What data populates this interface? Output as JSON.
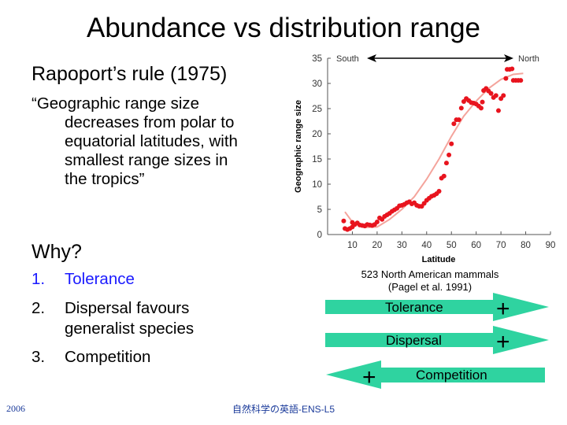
{
  "slide": {
    "title": "Abundance vs distribution range",
    "subtitle": "Rapoport’s rule (1975)",
    "quote_first": "“Geographic range size",
    "quote_rest": [
      "decreases from polar to",
      "equatorial latitudes, with",
      "smallest range sizes in",
      "the tropics”"
    ],
    "why": "Why?",
    "reasons": [
      {
        "num": "1.",
        "lines": [
          "Tolerance"
        ],
        "color": "#1a1aff"
      },
      {
        "num": "2.",
        "lines": [
          "Dispersal favours",
          "generalist species"
        ],
        "color": "#000000"
      },
      {
        "num": "3.",
        "lines": [
          "Competition"
        ],
        "color": "#000000"
      }
    ],
    "caption_line1": "523 North American mammals",
    "caption_line2": "(Pagel et al. 1991)",
    "arrows": [
      {
        "label": "Tolerance",
        "sign": "+",
        "direction": "right"
      },
      {
        "label": "Dispersal",
        "sign": "+",
        "direction": "right"
      },
      {
        "label": "Competition",
        "sign": "+",
        "direction": "left"
      }
    ],
    "arrow_color": "#2fd3a0",
    "footer_left": "2006",
    "footer_center": "自然科学の英語-ENS-L5"
  },
  "chart_data": {
    "type": "scatter",
    "xlabel": "Latitude",
    "ylabel": "Geographic range size",
    "xlim": [
      0,
      90
    ],
    "ylim": [
      0,
      35
    ],
    "xticks": [
      10,
      20,
      30,
      40,
      50,
      60,
      70,
      80,
      90
    ],
    "yticks": [
      0,
      5,
      10,
      15,
      20,
      25,
      30,
      35
    ],
    "grid": false,
    "annotation_left": "South",
    "annotation_right": "North",
    "point_color": "#e8141e",
    "curve_color": "#f4a49c",
    "points": [
      [
        6.5,
        2.7
      ],
      [
        7,
        1.2
      ],
      [
        8,
        1.0
      ],
      [
        9,
        1.2
      ],
      [
        10,
        1.5
      ],
      [
        10,
        2.4
      ],
      [
        11,
        2.0
      ],
      [
        12,
        2.3
      ],
      [
        13,
        1.9
      ],
      [
        14,
        1.8
      ],
      [
        15,
        1.7
      ],
      [
        16,
        2.0
      ],
      [
        17,
        1.9
      ],
      [
        18,
        1.8
      ],
      [
        19,
        2.0
      ],
      [
        20,
        2.5
      ],
      [
        21,
        3.3
      ],
      [
        22,
        3.0
      ],
      [
        23,
        3.6
      ],
      [
        24,
        3.9
      ],
      [
        25,
        4.2
      ],
      [
        26,
        4.6
      ],
      [
        27,
        4.9
      ],
      [
        28,
        5.2
      ],
      [
        29,
        5.7
      ],
      [
        30,
        5.8
      ],
      [
        31,
        6.0
      ],
      [
        32,
        6.3
      ],
      [
        33,
        6.5
      ],
      [
        34,
        6.1
      ],
      [
        35,
        6.3
      ],
      [
        36,
        5.8
      ],
      [
        37,
        5.6
      ],
      [
        38,
        5.6
      ],
      [
        39,
        6.2
      ],
      [
        40,
        6.8
      ],
      [
        41,
        7.2
      ],
      [
        42,
        7.6
      ],
      [
        43,
        7.8
      ],
      [
        44,
        8.1
      ],
      [
        45,
        8.6
      ],
      [
        46,
        11.2
      ],
      [
        47,
        11.6
      ],
      [
        48,
        14.2
      ],
      [
        49,
        15.8
      ],
      [
        50,
        18.0
      ],
      [
        51,
        22.0
      ],
      [
        52,
        22.8
      ],
      [
        53,
        22.8
      ],
      [
        54,
        25.1
      ],
      [
        55,
        26.4
      ],
      [
        56,
        27.0
      ],
      [
        57,
        26.6
      ],
      [
        58,
        26.2
      ],
      [
        59,
        26.1
      ],
      [
        60,
        25.9
      ],
      [
        61,
        25.5
      ],
      [
        62,
        25.1
      ],
      [
        62.5,
        26.3
      ],
      [
        63,
        28.6
      ],
      [
        64,
        29.0
      ],
      [
        65,
        28.5
      ],
      [
        66,
        28.0
      ],
      [
        67,
        27.2
      ],
      [
        68,
        27.6
      ],
      [
        69,
        24.6
      ],
      [
        70,
        27.0
      ],
      [
        71,
        27.6
      ],
      [
        72,
        31.0
      ],
      [
        72.5,
        32.8
      ],
      [
        73.5,
        32.8
      ],
      [
        74.5,
        32.9
      ],
      [
        75,
        30.6
      ],
      [
        76,
        30.6
      ],
      [
        77,
        30.6
      ],
      [
        78,
        30.6
      ]
    ],
    "fit_curve": [
      [
        7,
        4.5
      ],
      [
        10,
        2.5
      ],
      [
        15,
        1.4
      ],
      [
        20,
        1.5
      ],
      [
        25,
        3
      ],
      [
        30,
        5
      ],
      [
        35,
        7.5
      ],
      [
        40,
        11
      ],
      [
        45,
        15
      ],
      [
        50,
        19.5
      ],
      [
        55,
        23.5
      ],
      [
        60,
        26.5
      ],
      [
        65,
        29
      ],
      [
        70,
        30.8
      ],
      [
        75,
        31.8
      ],
      [
        79,
        32
      ]
    ]
  }
}
